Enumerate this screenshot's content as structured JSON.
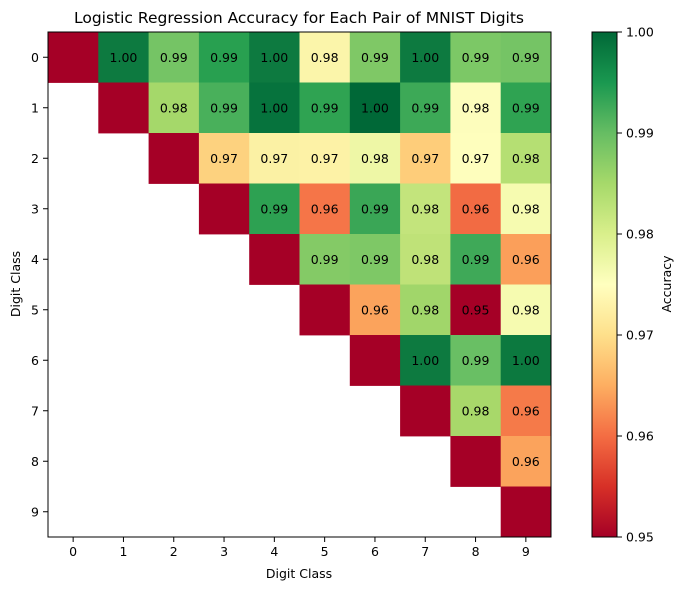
{
  "chart_data": {
    "type": "heatmap",
    "title": "Logistic Regression Accuracy for Each Pair of MNIST Digits",
    "xlabel": "Digit Class",
    "ylabel": "Digit Class",
    "x_categories": [
      "0",
      "1",
      "2",
      "3",
      "4",
      "5",
      "6",
      "7",
      "8",
      "9"
    ],
    "y_categories": [
      "0",
      "1",
      "2",
      "3",
      "4",
      "5",
      "6",
      "7",
      "8",
      "9"
    ],
    "colormap": "RdYlGn",
    "color_range": [
      0.95,
      1.0
    ],
    "colorbar": {
      "label": "Accuracy",
      "ticks": [
        "0.95",
        "0.96",
        "0.97",
        "0.98",
        "0.99",
        "1.00"
      ]
    },
    "masked_color": "#ffffff",
    "values": [
      [
        0.95,
        1.0,
        0.99,
        0.99,
        1.0,
        0.98,
        0.99,
        1.0,
        0.99,
        0.99
      ],
      [
        null,
        0.95,
        0.98,
        0.99,
        1.0,
        0.99,
        1.0,
        0.99,
        0.98,
        0.99
      ],
      [
        null,
        null,
        0.95,
        0.97,
        0.97,
        0.97,
        0.98,
        0.97,
        0.97,
        0.98
      ],
      [
        null,
        null,
        null,
        0.95,
        0.99,
        0.96,
        0.99,
        0.98,
        0.96,
        0.98
      ],
      [
        null,
        null,
        null,
        null,
        0.95,
        0.99,
        0.99,
        0.98,
        0.99,
        0.96
      ],
      [
        null,
        null,
        null,
        null,
        null,
        0.95,
        0.96,
        0.98,
        0.95,
        0.98
      ],
      [
        null,
        null,
        null,
        null,
        null,
        null,
        0.95,
        1.0,
        0.99,
        1.0
      ],
      [
        null,
        null,
        null,
        null,
        null,
        null,
        null,
        0.95,
        0.98,
        0.96
      ],
      [
        null,
        null,
        null,
        null,
        null,
        null,
        null,
        null,
        0.95,
        0.96
      ],
      [
        null,
        null,
        null,
        null,
        null,
        null,
        null,
        null,
        null,
        0.95
      ]
    ],
    "labels": [
      [
        "",
        "1.00",
        "0.99",
        "0.99",
        "1.00",
        "0.98",
        "0.99",
        "1.00",
        "0.99",
        "0.99"
      ],
      [
        "",
        "",
        "0.98",
        "0.99",
        "1.00",
        "0.99",
        "1.00",
        "0.99",
        "0.98",
        "0.99"
      ],
      [
        "",
        "",
        "",
        "0.97",
        "0.97",
        "0.97",
        "0.98",
        "0.97",
        "0.97",
        "0.98"
      ],
      [
        "",
        "",
        "",
        "",
        "0.99",
        "0.96",
        "0.99",
        "0.98",
        "0.96",
        "0.98"
      ],
      [
        "",
        "",
        "",
        "",
        "",
        "0.99",
        "0.99",
        "0.98",
        "0.99",
        "0.96"
      ],
      [
        "",
        "",
        "",
        "",
        "",
        "",
        "0.96",
        "0.98",
        "0.95",
        "0.98"
      ],
      [
        "",
        "",
        "",
        "",
        "",
        "",
        "",
        "1.00",
        "0.99",
        "1.00"
      ],
      [
        "",
        "",
        "",
        "",
        "",
        "",
        "",
        "",
        "0.98",
        "0.96"
      ],
      [
        "",
        "",
        "",
        "",
        "",
        "",
        "",
        "",
        "",
        "0.96"
      ],
      [
        "",
        "",
        "",
        "",
        "",
        "",
        "",
        "",
        "",
        ""
      ]
    ]
  },
  "colors": {
    "cells": [
      [
        "#a50026",
        "#0d7a40",
        "#75c465",
        "#28a050",
        "#0d7a40",
        "#fbf5aa",
        "#7fc866",
        "#0d7a40",
        "#7cc866",
        "#75c465"
      ],
      [
        null,
        "#a50026",
        "#a5d86a",
        "#49b05b",
        "#06733d",
        "#2fa352",
        "#006837",
        "#3da957",
        "#fdfdbc",
        "#2fa352"
      ],
      [
        null,
        null,
        "#a50026",
        "#fdd27f",
        "#fbf1a4",
        "#fdf2a6",
        "#eef7a6",
        "#fecd7a",
        "#fefebd",
        "#b5df73"
      ],
      [
        null,
        null,
        null,
        "#a50026",
        "#2da152",
        "#f57548",
        "#3aa656",
        "#c3e47c",
        "#f26b43",
        "#f6fbb0"
      ],
      [
        null,
        null,
        null,
        null,
        "#a50026",
        "#84ca66",
        "#7ec866",
        "#bfe278",
        "#3fa958",
        "#fb9f5a"
      ],
      [
        null,
        null,
        null,
        null,
        null,
        "#a50026",
        "#fba35c",
        "#a1d66a",
        "#a50026",
        "#f6fbb0"
      ],
      [
        null,
        null,
        null,
        null,
        null,
        null,
        "#a50026",
        "#0d7a40",
        "#69bf64",
        "#0c793f"
      ],
      [
        null,
        null,
        null,
        null,
        null,
        null,
        null,
        "#a50026",
        "#a8d86a",
        "#f57a49"
      ],
      [
        null,
        null,
        null,
        null,
        null,
        null,
        null,
        null,
        "#a50026",
        "#fba35c"
      ],
      [
        null,
        null,
        null,
        null,
        null,
        null,
        null,
        null,
        null,
        "#a50026"
      ]
    ],
    "colorbar_stops": [
      "#a50026",
      "#d73027",
      "#f46d43",
      "#fdae61",
      "#fee08b",
      "#ffffbf",
      "#d9ef8b",
      "#a6d96a",
      "#66bd63",
      "#1a9850",
      "#006837"
    ]
  }
}
